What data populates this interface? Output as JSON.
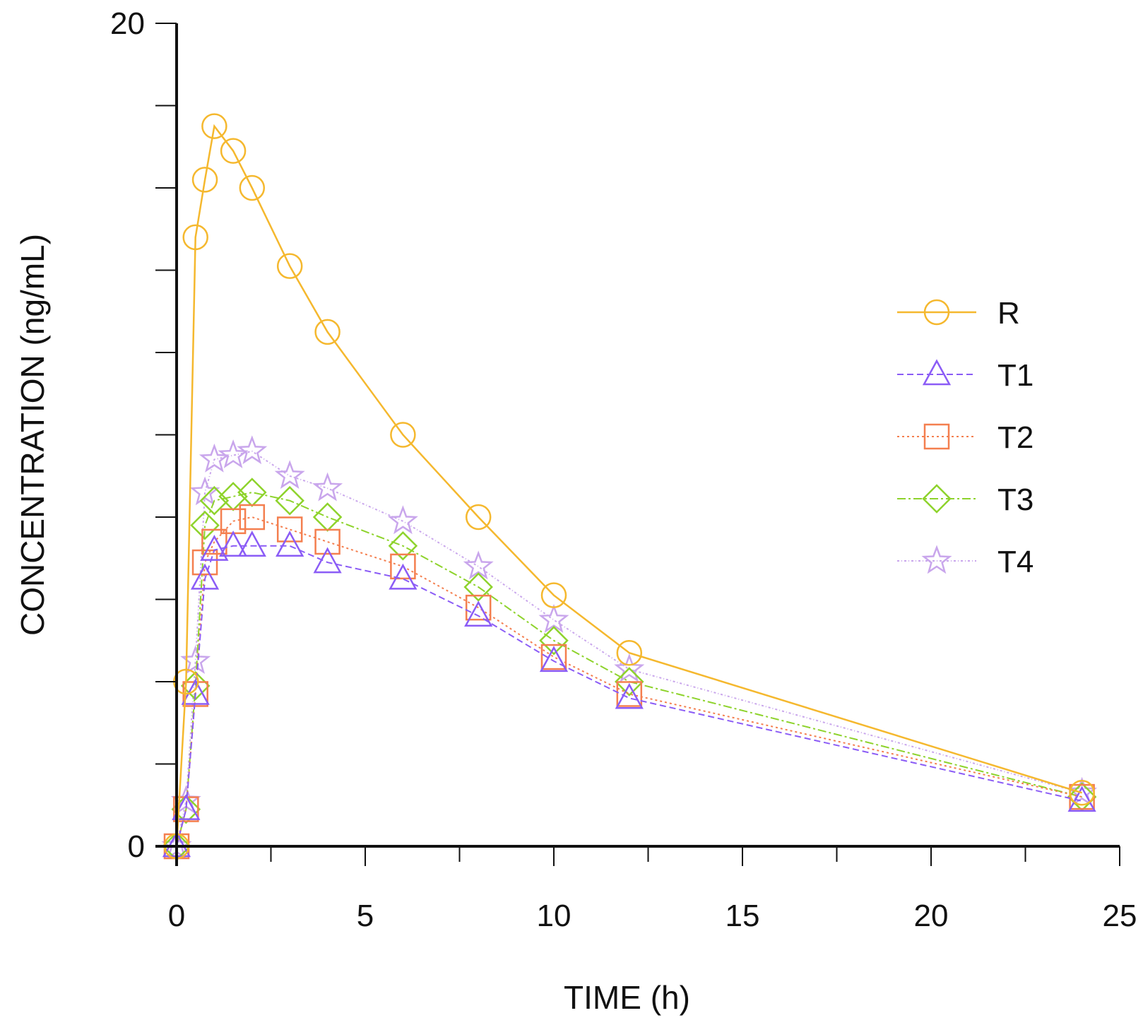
{
  "chart_data": {
    "type": "line",
    "title": "",
    "xlabel": "TIME (h)",
    "ylabel": "CONCENTRATION (ng/mL)",
    "xlim": [
      0,
      25
    ],
    "ylim": [
      0,
      20
    ],
    "x_ticks": [
      0,
      5,
      10,
      15,
      20,
      25
    ],
    "x_minor_step": 2.5,
    "y_ticks": [
      0,
      20
    ],
    "y_minor_step": 2,
    "grid": false,
    "legend_position": "right",
    "series": [
      {
        "name": "R",
        "color": "#f5b82e",
        "marker": "circle",
        "dash": "",
        "x": [
          0,
          0.25,
          0.5,
          0.75,
          1,
          1.5,
          2,
          3,
          4,
          6,
          8,
          10,
          12,
          24
        ],
        "y": [
          0,
          4.0,
          14.8,
          16.2,
          17.5,
          16.9,
          16.0,
          14.1,
          12.5,
          10.0,
          8.0,
          6.1,
          4.7,
          1.3
        ]
      },
      {
        "name": "T1",
        "color": "#8b5cf6",
        "marker": "triangle",
        "dash": "9,5",
        "x": [
          0,
          0.25,
          0.5,
          0.75,
          1,
          1.5,
          2,
          3,
          4,
          6,
          8,
          10,
          12,
          24
        ],
        "y": [
          0,
          0.9,
          3.7,
          6.5,
          7.2,
          7.3,
          7.3,
          7.3,
          6.9,
          6.5,
          5.6,
          4.5,
          3.6,
          1.1
        ]
      },
      {
        "name": "T2",
        "color": "#f47f4f",
        "marker": "square",
        "dash": "3,4",
        "x": [
          0,
          0.25,
          0.5,
          0.75,
          1,
          1.5,
          2,
          3,
          4,
          6,
          8,
          10,
          12,
          24
        ],
        "y": [
          0,
          0.9,
          3.7,
          6.9,
          7.4,
          7.9,
          8.0,
          7.7,
          7.4,
          6.8,
          5.8,
          4.6,
          3.7,
          1.2
        ]
      },
      {
        "name": "T3",
        "color": "#8ed32c",
        "marker": "diamond",
        "dash": "12,4,3,4",
        "x": [
          0,
          0.25,
          0.5,
          0.75,
          1,
          1.5,
          2,
          3,
          4,
          6,
          8,
          10,
          12,
          24
        ],
        "y": [
          0,
          0.9,
          3.9,
          7.8,
          8.4,
          8.5,
          8.6,
          8.4,
          8.0,
          7.3,
          6.3,
          5.0,
          4.0,
          1.2
        ]
      },
      {
        "name": "T4",
        "color": "#c9a6ec",
        "marker": "star",
        "dash": "3,3,1,3",
        "x": [
          0,
          0.25,
          0.5,
          0.75,
          1,
          1.5,
          2,
          3,
          4,
          6,
          8,
          10,
          12,
          24
        ],
        "y": [
          0,
          1.1,
          4.5,
          8.6,
          9.4,
          9.5,
          9.6,
          9.0,
          8.7,
          7.9,
          6.8,
          5.5,
          4.3,
          1.3
        ]
      }
    ]
  }
}
